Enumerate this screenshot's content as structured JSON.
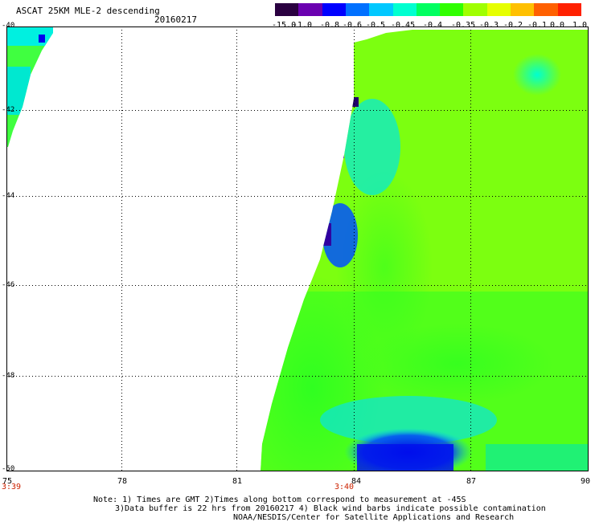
{
  "header": {
    "title": "ASCAT 25KM MLE-2 descending",
    "date": "20160217"
  },
  "colorbar": {
    "ticks": [
      "-15.0",
      "-1.0",
      "-0.8",
      "-0.6",
      "-0.5",
      "-0.45",
      "-0.4",
      "-0.35",
      "-0.3",
      "-0.2",
      "-0.1",
      "0.0",
      "1.0"
    ],
    "colors": [
      "#2a0040",
      "#6a00b0",
      "#0000ff",
      "#0070ff",
      "#00c8ff",
      "#00ffd0",
      "#00ff60",
      "#30ff00",
      "#a0ff00",
      "#e6ff00",
      "#ffc000",
      "#ff6000",
      "#ff2000"
    ]
  },
  "map": {
    "lat_labels": [
      "-40",
      "-42",
      "-44",
      "-46",
      "-48",
      "-50"
    ],
    "lon_labels": [
      "75",
      "78",
      "81",
      "84",
      "87",
      "90"
    ],
    "time_labels": [
      "3:39",
      "3:40"
    ],
    "lat_range": [
      -50,
      -40
    ],
    "lon_range": [
      75,
      90
    ]
  },
  "notes": {
    "line1": "Note: 1) Times are GMT 2)Times along bottom correspond to measurement at -45S",
    "line2": "3)Data buffer is 22 hrs from 20160217 4) Black wind barbs indicate possible contamination",
    "line3": "NOAA/NESDIS/Center for Satellite Applications and Research"
  }
}
